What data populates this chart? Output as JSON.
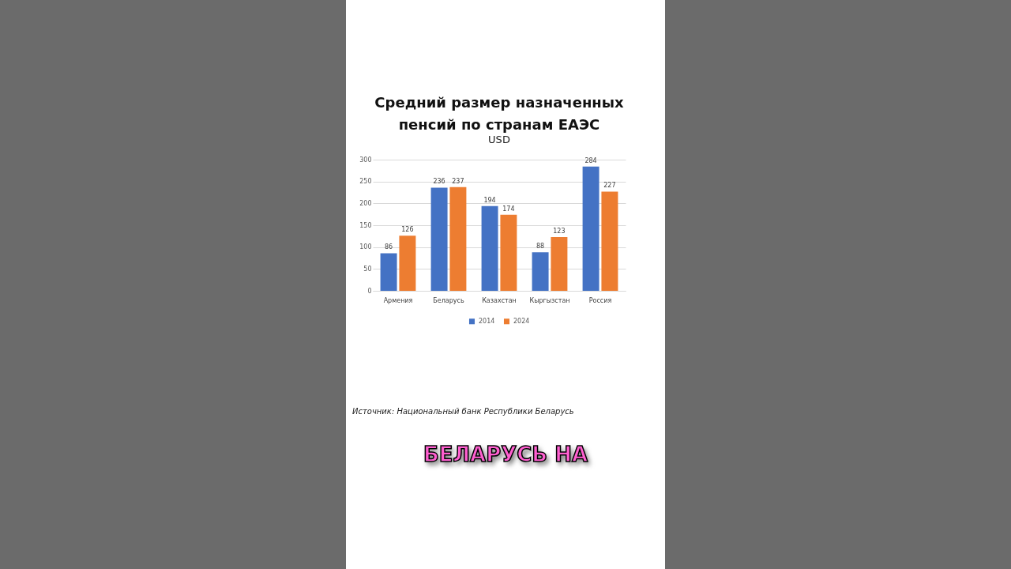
{
  "chart_data": {
    "type": "bar",
    "title": "Средний размер назначенных пенсий по странам ЕАЭС",
    "subtitle": "USD",
    "categories": [
      "Армения",
      "Беларусь",
      "Казахстан",
      "Кыргызстан",
      "Россия"
    ],
    "series": [
      {
        "name": "2014",
        "color": "#4472c4",
        "values": [
          86,
          236,
          194,
          88,
          284
        ]
      },
      {
        "name": "2024",
        "color": "#ed7d31",
        "values": [
          126,
          237,
          174,
          123,
          227
        ]
      }
    ],
    "ylim": [
      0,
      300
    ],
    "yticks": [
      0,
      50,
      100,
      150,
      200,
      250,
      300
    ],
    "grid": "y",
    "legend": "bottom",
    "data_labels": true,
    "annotations": [
      "Источник: Национальный банк Республики Беларусь",
      "БЕЛАРУСЬ НА"
    ]
  }
}
